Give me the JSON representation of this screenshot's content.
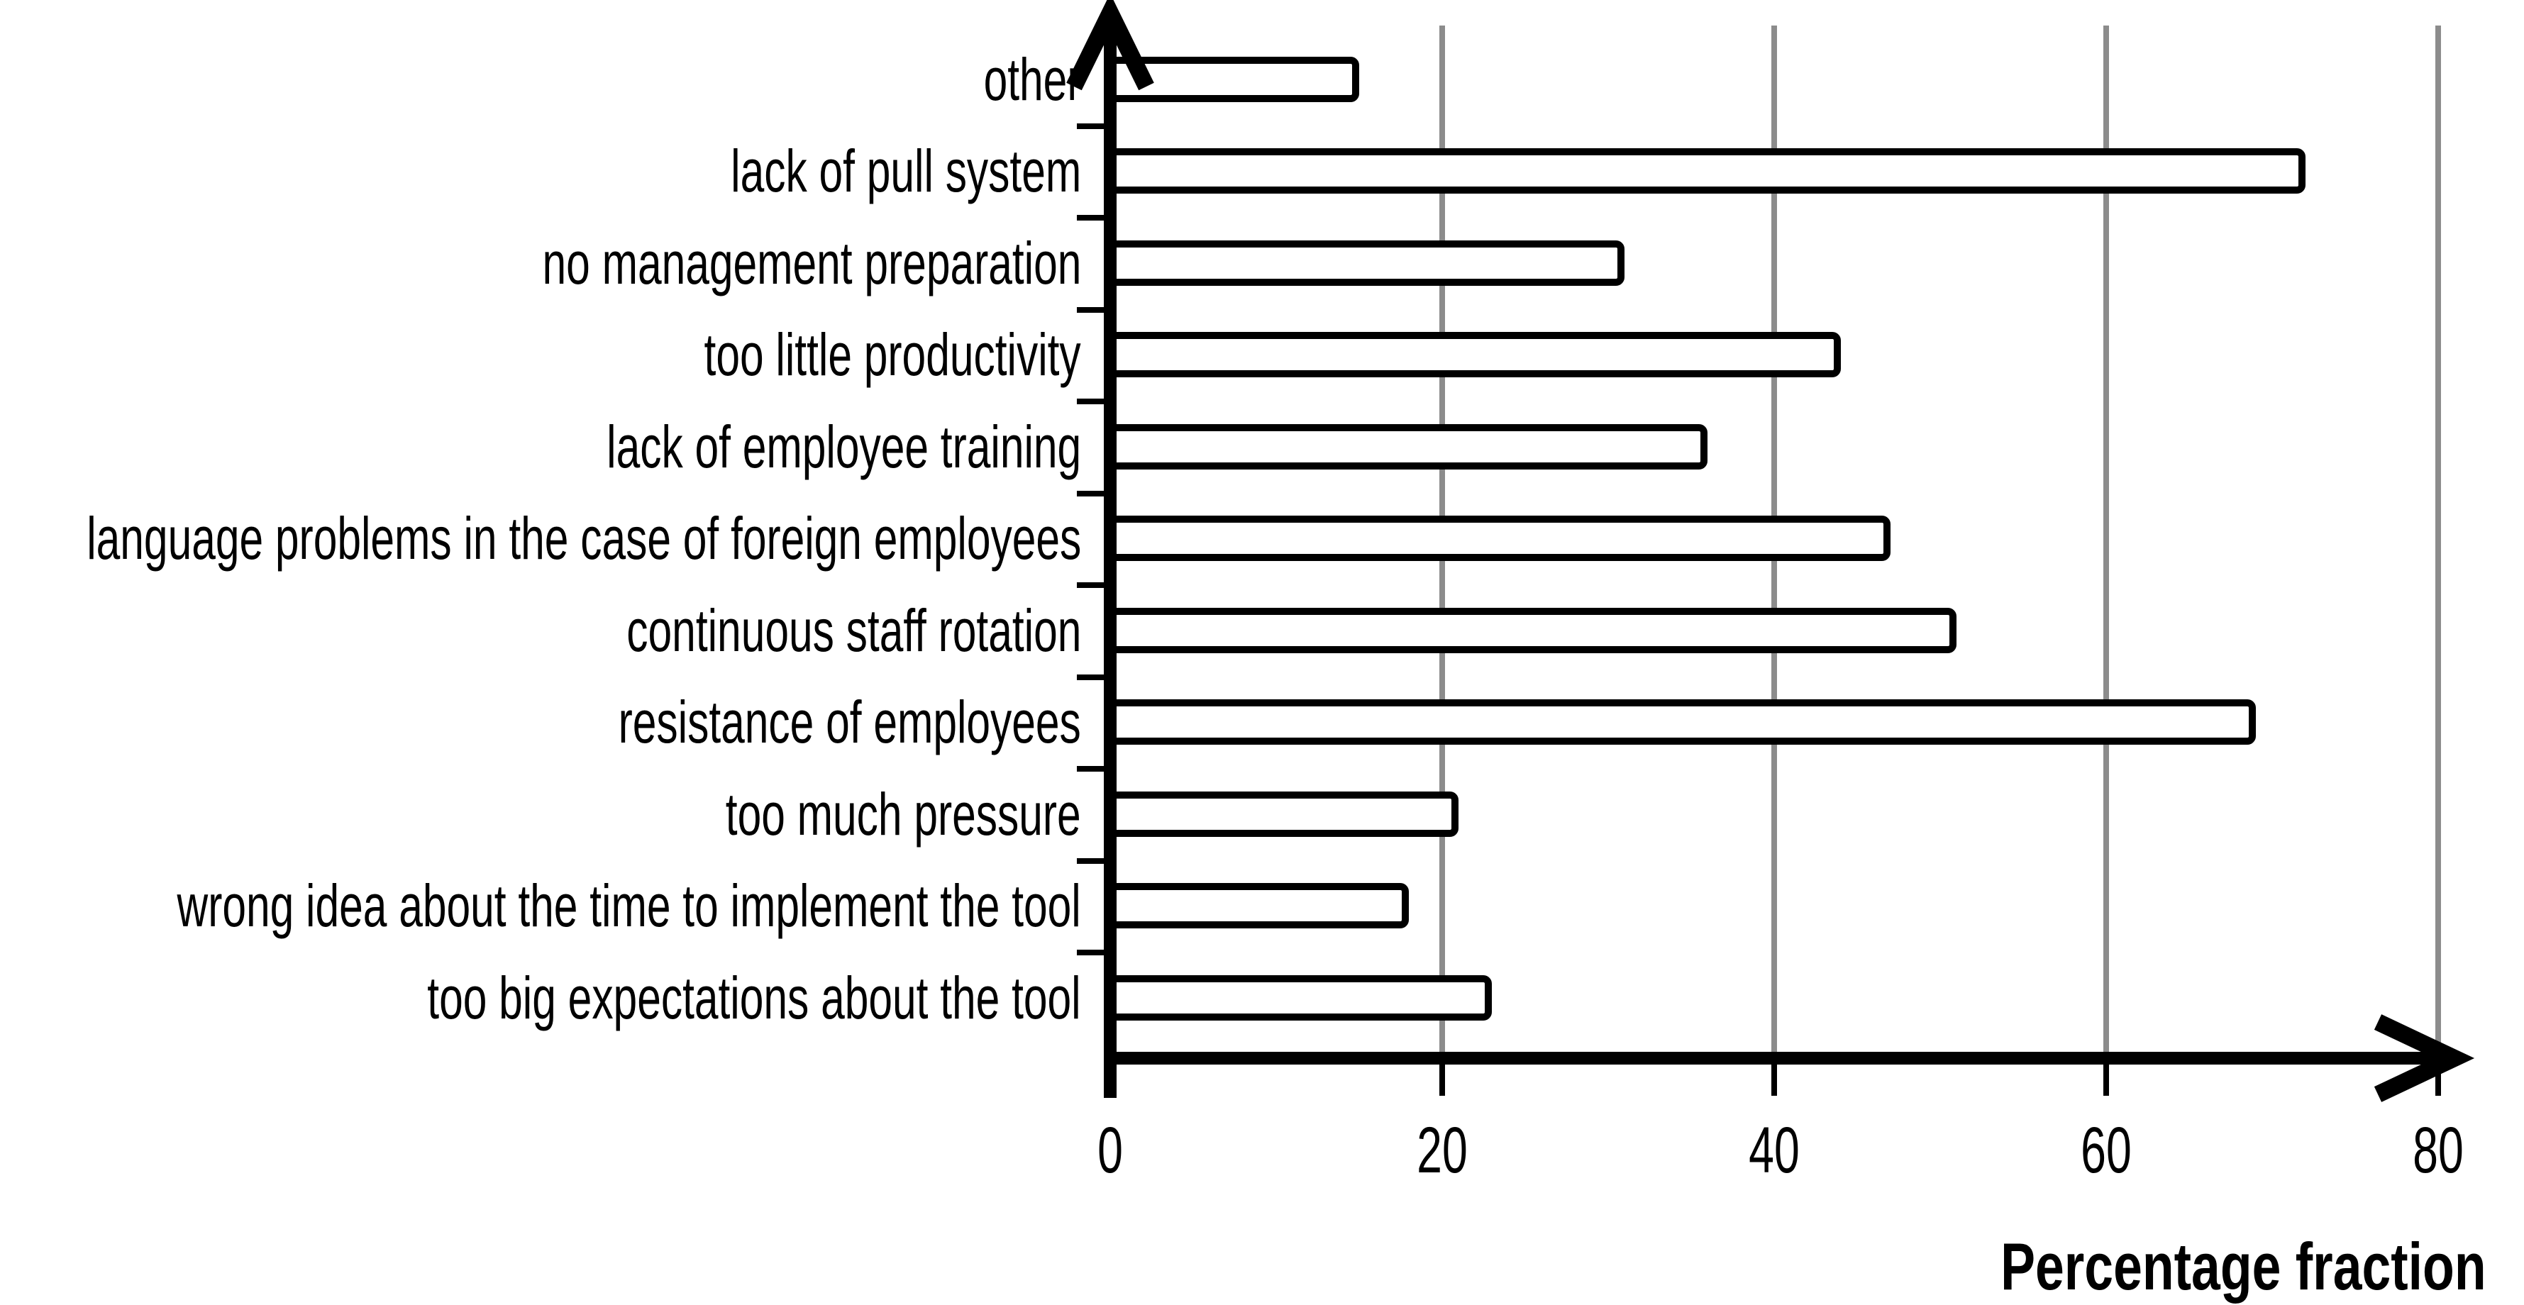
{
  "chart_data": {
    "type": "bar",
    "orientation": "horizontal",
    "title": "",
    "xlabel": "Percentage fraction",
    "ylabel": "",
    "categories": [
      "other",
      "lack of pull system",
      "no management preparation",
      "too little productivity",
      "lack of employee training",
      "language problems in the case of foreign employees",
      "continuous staff rotation",
      "resistance of employees",
      "too much pressure",
      "wrong idea about the time to implement the tool",
      "too big expectations about the tool"
    ],
    "values": [
      15,
      72,
      31,
      44,
      36,
      47,
      51,
      69,
      21,
      18,
      23
    ],
    "xlim": [
      0,
      80
    ],
    "x_ticks": [
      0,
      20,
      40,
      60,
      80
    ],
    "grid": "vertical gridlines at x ticks",
    "legend": "none",
    "colors": {
      "bar_fill": "#ffffff",
      "bar_border": "#000000",
      "gridline": "#8c8c8c",
      "axis": "#000000",
      "text": "#000000"
    }
  }
}
